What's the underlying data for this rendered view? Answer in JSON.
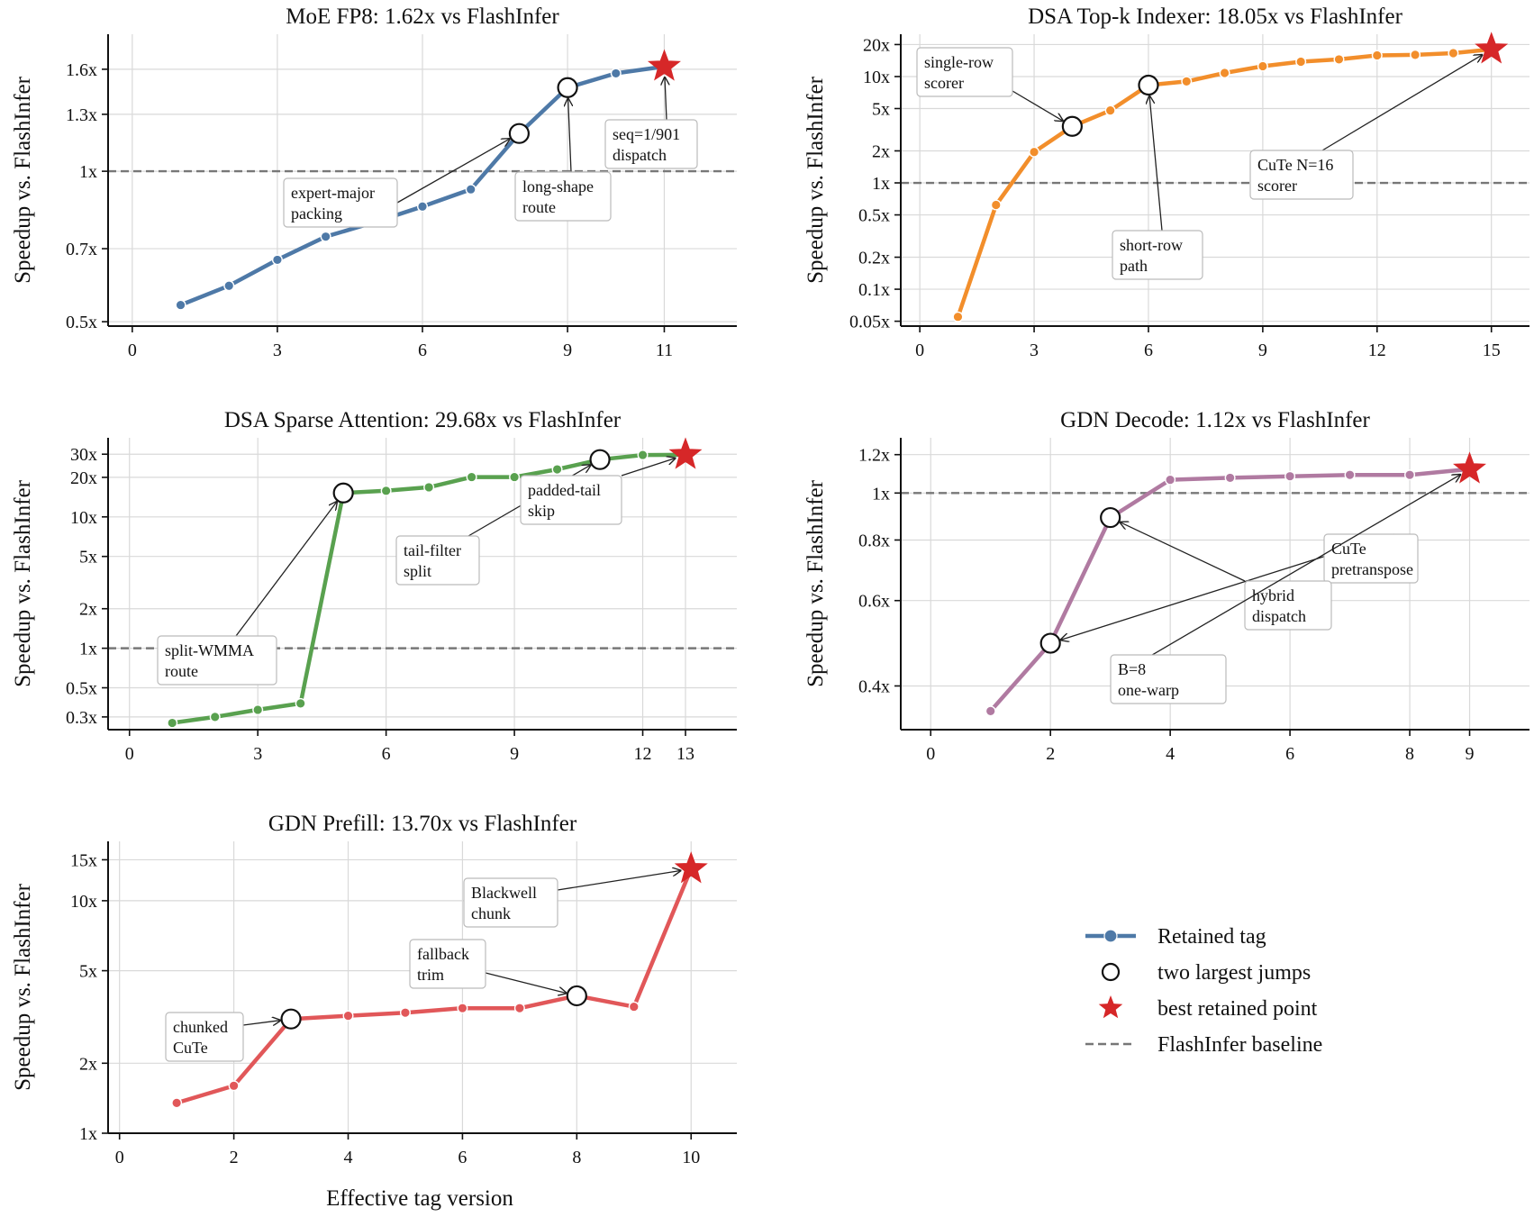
{
  "figure": {
    "xlabel": "Effective tag version",
    "legend": {
      "placement": "bottom-right",
      "items": [
        {
          "label": "Retained tag",
          "kind": "line-marker",
          "color": "#4e79a7"
        },
        {
          "label": "two largest jumps",
          "kind": "open-circle"
        },
        {
          "label": "best retained point",
          "kind": "star",
          "color": "#d62728"
        },
        {
          "label": "FlashInfer baseline",
          "kind": "dashed-line",
          "color": "#777777"
        }
      ]
    }
  },
  "chart_data": [
    {
      "type": "line",
      "title": "MoE FP8: 1.62x vs FlashInfer",
      "ylabel": "Speedup vs. FlashInfer",
      "yscale": "log",
      "color": "#4e79a7",
      "xlim": [
        -0.5,
        12.5
      ],
      "ylim": [
        0.49,
        1.88
      ],
      "xticks": [
        0,
        3,
        6,
        9,
        11
      ],
      "yticks": [
        0.5,
        0.7,
        1,
        1.3,
        1.6
      ],
      "ytick_labels": [
        "0.5x",
        "0.7x",
        "1x",
        "1.3x",
        "1.6x"
      ],
      "baseline": 1,
      "grid": true,
      "series": [
        {
          "x": [
            1,
            2,
            3,
            4,
            5,
            6,
            7,
            8,
            9,
            10,
            11
          ],
          "values": [
            0.54,
            0.59,
            0.665,
            0.74,
            0.79,
            0.85,
            0.92,
            1.19,
            1.47,
            1.57,
            1.62
          ]
        }
      ],
      "jumps": [
        8,
        9
      ],
      "best": 11,
      "annotations": [
        {
          "lines": [
            "expert-major",
            "packing"
          ],
          "target": 8
        },
        {
          "lines": [
            "long-shape",
            "route"
          ],
          "target": 9
        },
        {
          "lines": [
            "seq=1/901",
            "dispatch"
          ],
          "target": 11
        }
      ]
    },
    {
      "type": "line",
      "title": "DSA Top-k Indexer: 18.05x vs FlashInfer",
      "ylabel": "Speedup vs. FlashInfer",
      "yscale": "log",
      "color": "#f28e2b",
      "xlim": [
        -0.5,
        16
      ],
      "ylim": [
        0.045,
        25
      ],
      "xticks": [
        0,
        3,
        6,
        9,
        12,
        15
      ],
      "yticks": [
        0.05,
        0.1,
        0.2,
        0.5,
        1,
        2,
        5,
        10,
        20
      ],
      "ytick_labels": [
        "0.05x",
        "0.1x",
        "0.2x",
        "0.5x",
        "1x",
        "2x",
        "5x",
        "10x",
        "20x"
      ],
      "baseline": 1,
      "grid": true,
      "series": [
        {
          "x": [
            1,
            2,
            3,
            4,
            5,
            6,
            7,
            8,
            9,
            10,
            11,
            12,
            13,
            14,
            15
          ],
          "values": [
            0.055,
            0.62,
            1.95,
            3.4,
            4.8,
            8.3,
            9.0,
            10.8,
            12.5,
            13.8,
            14.5,
            15.8,
            16.0,
            16.6,
            18.05
          ]
        }
      ],
      "jumps": [
        4,
        6
      ],
      "best": 15,
      "annotations": [
        {
          "lines": [
            "single-row",
            "scorer"
          ],
          "target": 4
        },
        {
          "lines": [
            "short-row",
            "path"
          ],
          "target": 6
        },
        {
          "lines": [
            "CuTe N=16",
            "scorer"
          ],
          "target": 15
        }
      ]
    },
    {
      "type": "line",
      "title": "DSA Sparse Attention: 29.68x vs FlashInfer",
      "ylabel": "Speedup vs. FlashInfer",
      "yscale": "log",
      "color": "#59a14f",
      "xlim": [
        -0.5,
        14.2
      ],
      "ylim": [
        0.24,
        40
      ],
      "xticks": [
        0,
        3,
        6,
        9,
        12,
        13
      ],
      "yticks": [
        0.3,
        0.5,
        1,
        2,
        5,
        10,
        20,
        30
      ],
      "ytick_labels": [
        "0.3x",
        "0.5x",
        "1x",
        "2x",
        "5x",
        "10x",
        "20x",
        "30x"
      ],
      "baseline": 1,
      "grid": true,
      "series": [
        {
          "x": [
            1,
            2,
            3,
            4,
            5,
            6,
            7,
            8,
            9,
            10,
            11,
            12,
            13
          ],
          "values": [
            0.27,
            0.3,
            0.34,
            0.38,
            15.2,
            15.8,
            16.8,
            20.1,
            20.1,
            23.0,
            27.3,
            29.6,
            29.68
          ]
        }
      ],
      "jumps": [
        5,
        11
      ],
      "best": 13,
      "annotations": [
        {
          "lines": [
            "split-WMMA",
            "route"
          ],
          "target": 5
        },
        {
          "lines": [
            "tail-filter",
            "split"
          ],
          "target": 11
        },
        {
          "lines": [
            "padded-tail",
            "skip"
          ],
          "target": 13
        }
      ]
    },
    {
      "type": "line",
      "title": "GDN Decode: 1.12x vs FlashInfer",
      "ylabel": "Speedup vs. FlashInfer",
      "yscale": "log",
      "color": "#b07aa1",
      "xlim": [
        -0.5,
        10
      ],
      "ylim": [
        0.325,
        1.3
      ],
      "xticks": [
        0,
        2,
        4,
        6,
        8,
        9
      ],
      "yticks": [
        0.4,
        0.6,
        0.8,
        1,
        1.2
      ],
      "ytick_labels": [
        "0.4x",
        "0.6x",
        "0.8x",
        "1x",
        "1.2x"
      ],
      "baseline": 1,
      "grid": true,
      "series": [
        {
          "x": [
            1,
            2,
            3,
            4,
            5,
            6,
            7,
            8,
            9
          ],
          "values": [
            0.355,
            0.49,
            0.89,
            1.065,
            1.075,
            1.083,
            1.09,
            1.09,
            1.12
          ]
        }
      ],
      "jumps": [
        2,
        3
      ],
      "best": 9,
      "annotations": [
        {
          "lines": [
            "CuTe",
            "pretranspose"
          ],
          "target": 2
        },
        {
          "lines": [
            "hybrid",
            "dispatch"
          ],
          "target": 3
        },
        {
          "lines": [
            "B=8",
            "one-warp"
          ],
          "target": 9
        }
      ]
    },
    {
      "type": "line",
      "title": "GDN Prefill: 13.70x vs FlashInfer",
      "ylabel": "Speedup vs. FlashInfer",
      "yscale": "log",
      "color": "#e15759",
      "xlim": [
        -0.2,
        10.8
      ],
      "ylim": [
        1.0,
        18
      ],
      "xticks": [
        0,
        2,
        4,
        6,
        8,
        10
      ],
      "yticks": [
        1,
        2,
        5,
        10,
        15
      ],
      "ytick_labels": [
        "1x",
        "2x",
        "5x",
        "10x",
        "15x"
      ],
      "baseline": null,
      "grid": true,
      "series": [
        {
          "x": [
            1,
            2,
            3,
            4,
            5,
            6,
            7,
            8,
            9,
            10
          ],
          "values": [
            1.35,
            1.6,
            3.1,
            3.2,
            3.3,
            3.45,
            3.45,
            3.9,
            3.5,
            13.7
          ]
        }
      ],
      "jumps": [
        3,
        8
      ],
      "best": 10,
      "annotations": [
        {
          "lines": [
            "chunked",
            "CuTe"
          ],
          "target": 3
        },
        {
          "lines": [
            "fallback",
            "trim"
          ],
          "target": 8
        },
        {
          "lines": [
            "Blackwell",
            "chunk"
          ],
          "target": 10
        }
      ]
    }
  ]
}
